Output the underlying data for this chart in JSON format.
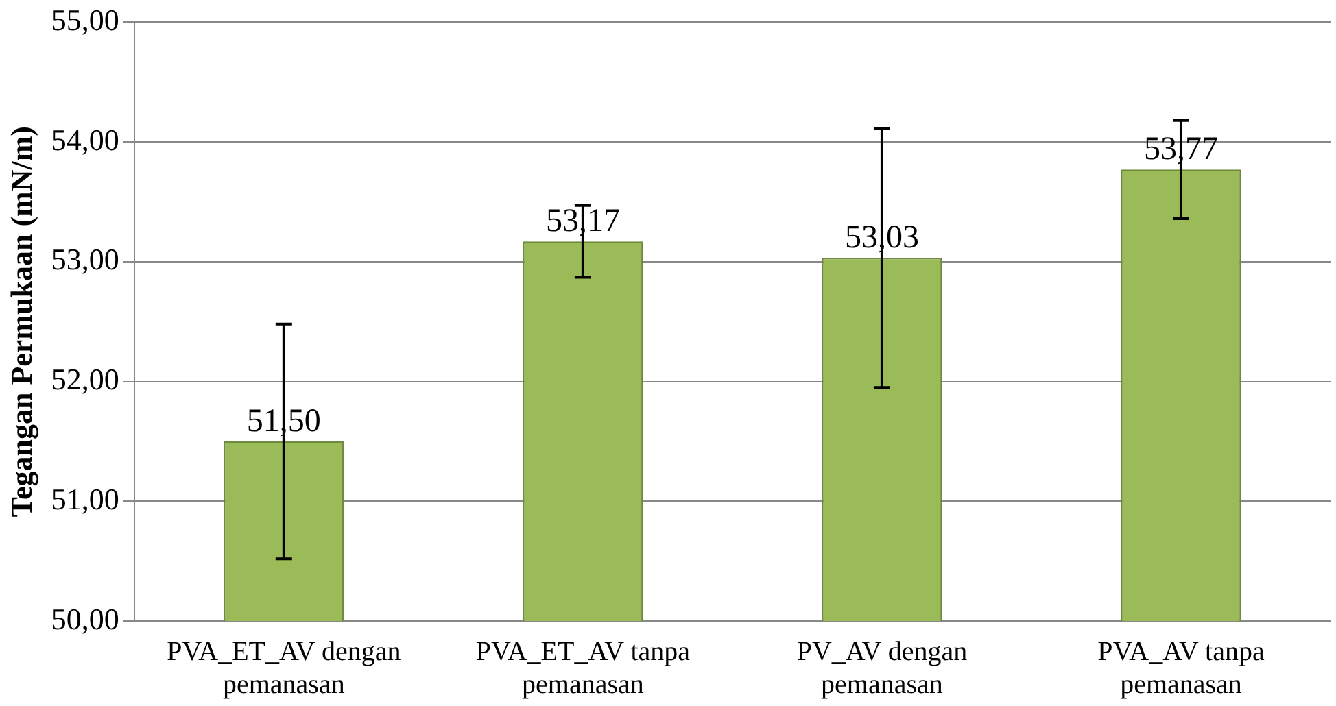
{
  "chart_data": {
    "type": "bar",
    "ylabel": "Tegangan Permukaan (mN/m)",
    "categories": [
      "PVA_ET_AV dengan pemanasan",
      "PVA_ET_AV tanpa pemanasan",
      "PV_AV dengan pemanasan",
      "PVA_AV tanpa pemanasan"
    ],
    "values": [
      51.5,
      53.17,
      53.03,
      53.77
    ],
    "errors": [
      0.98,
      0.3,
      1.08,
      0.41
    ],
    "value_labels": [
      "51,50",
      "53,17",
      "53,03",
      "53,77"
    ],
    "color": "#9bbb59",
    "ylim": [
      50,
      55
    ],
    "yticks": [
      {
        "value": 50,
        "label": "50,00"
      },
      {
        "value": 51,
        "label": "51,00"
      },
      {
        "value": 52,
        "label": "52,00"
      },
      {
        "value": 53,
        "label": "53,00"
      },
      {
        "value": 54,
        "label": "54,00"
      },
      {
        "value": 55,
        "label": "55,00"
      }
    ],
    "grid": "y",
    "legend": false
  }
}
